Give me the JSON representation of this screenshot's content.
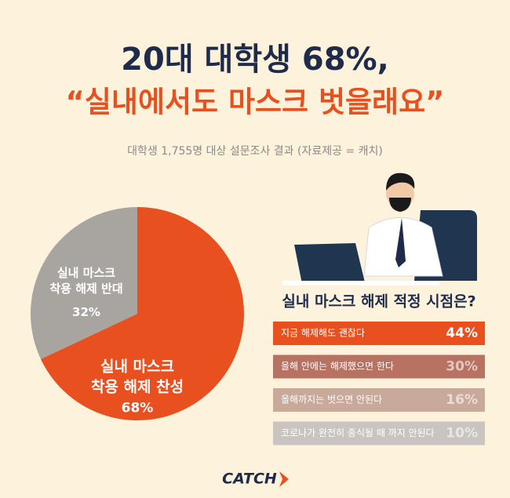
{
  "header": {
    "title": "20대 대학생 68%,",
    "subtitle": "“실내에서도 마스크 벗을래요”",
    "note": "대학생 1,755명 대상 설문조사 결과 (자료제공 = 캐치)"
  },
  "chart_data": [
    {
      "type": "pie",
      "categories": [
        "실내 마스크\n착용 해제 찬성",
        "실내 마스크\n착용 해제 반대"
      ],
      "values": [
        68,
        32
      ],
      "value_labels": [
        "68%",
        "32%"
      ],
      "colors": [
        "#e8501f",
        "#a8a5a1"
      ]
    },
    {
      "type": "ranking",
      "title": "실내 마스크 해제 적정 시점은?",
      "categories": [
        "지금 해제해도 괜찮다",
        "올해 안에는 해제했으면 한다",
        "올해까지는 벗으면 안된다",
        "코로나가 완전히 종식될 때 까지 안된다"
      ],
      "values": [
        44,
        30,
        16,
        10
      ],
      "value_labels": [
        "44%",
        "30%",
        "16%",
        "10%"
      ],
      "colors": [
        "#e8501f",
        "#b87262",
        "#c9a99a",
        "#c9c4bf"
      ]
    }
  ],
  "footer": {
    "logo": "CATCH"
  }
}
